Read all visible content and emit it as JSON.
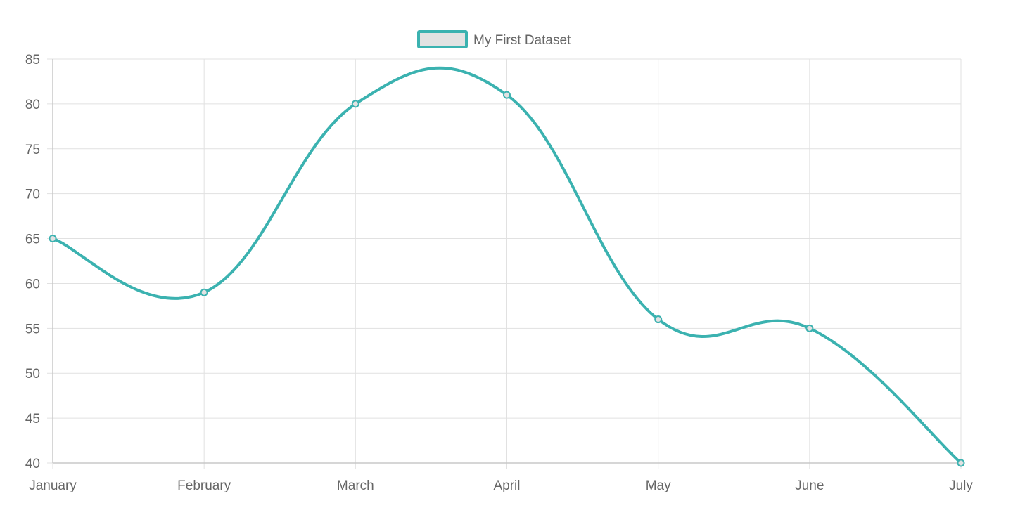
{
  "chart_data": {
    "type": "line",
    "categories": [
      "January",
      "February",
      "March",
      "April",
      "May",
      "June",
      "July"
    ],
    "series": [
      {
        "name": "My First Dataset",
        "values": [
          65,
          59,
          80,
          81,
          56,
          55,
          40
        ],
        "color": "#3bb2b0",
        "fill": "#e2e2e2"
      }
    ],
    "ylim": [
      40,
      85
    ],
    "yticks": [
      40,
      45,
      50,
      55,
      60,
      65,
      70,
      75,
      80,
      85
    ],
    "grid": true,
    "legend": "top-center"
  },
  "colors": {
    "grid": "#e1e1e1",
    "axis": "#c8c8c8",
    "text": "#666666"
  }
}
